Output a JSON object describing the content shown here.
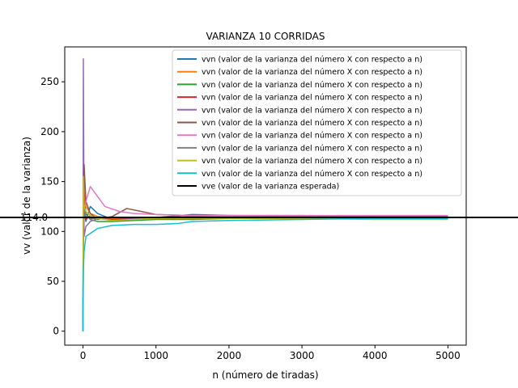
{
  "chart_data": {
    "type": "line",
    "title": "VARIANZA 10 CORRIDAS",
    "xlabel": "n (número de tiradas)",
    "ylabel": "vv (valor de la varianza)",
    "xlim": [
      -250,
      5250
    ],
    "ylim": [
      -14,
      285
    ],
    "x_ticks": [
      0,
      1000,
      2000,
      3000,
      4000,
      5000
    ],
    "y_ticks": [
      0,
      50,
      100,
      150,
      200,
      250
    ],
    "extra_y_tick": {
      "value": 114,
      "label": "114.0"
    },
    "grid": false,
    "legend_position": "top-right",
    "expected_line": {
      "name": "vve (valor de la varianza esperada)",
      "y": 114,
      "color": "#000000"
    },
    "series": [
      {
        "name": "vvn (valor de la varianza del número X con respecto a n)",
        "color": "#1f77b4",
        "points": [
          [
            0,
            0
          ],
          [
            5,
            160
          ],
          [
            15,
            120
          ],
          [
            40,
            110
          ],
          [
            100,
            125
          ],
          [
            200,
            118
          ],
          [
            400,
            112
          ],
          [
            700,
            112
          ],
          [
            1000,
            114
          ],
          [
            1500,
            117
          ],
          [
            2000,
            116
          ],
          [
            3000,
            116
          ],
          [
            4000,
            115
          ],
          [
            5000,
            115
          ]
        ]
      },
      {
        "name": "vvn (valor de la varianza del número X con respecto a n)",
        "color": "#ff7f0e",
        "points": [
          [
            0,
            0
          ],
          [
            5,
            130
          ],
          [
            15,
            145
          ],
          [
            40,
            125
          ],
          [
            100,
            118
          ],
          [
            200,
            115
          ],
          [
            400,
            113
          ],
          [
            700,
            112
          ],
          [
            1000,
            113
          ],
          [
            1500,
            113
          ],
          [
            2000,
            114
          ],
          [
            3000,
            114
          ],
          [
            4000,
            114
          ],
          [
            5000,
            114
          ]
        ]
      },
      {
        "name": "vvn (valor de la varianza del número X con respecto a n)",
        "color": "#2ca02c",
        "points": [
          [
            0,
            0
          ],
          [
            5,
            100
          ],
          [
            15,
            135
          ],
          [
            40,
            118
          ],
          [
            100,
            112
          ],
          [
            200,
            110
          ],
          [
            400,
            110
          ],
          [
            700,
            111
          ],
          [
            1000,
            112
          ],
          [
            1500,
            112
          ],
          [
            2000,
            113
          ],
          [
            3000,
            113
          ],
          [
            4000,
            113
          ],
          [
            5000,
            113
          ]
        ]
      },
      {
        "name": "vvn (valor de la varianza del número X con respecto a n)",
        "color": "#d62728",
        "points": [
          [
            0,
            0
          ],
          [
            5,
            110
          ],
          [
            15,
            140
          ],
          [
            40,
            112
          ],
          [
            100,
            116
          ],
          [
            200,
            113
          ],
          [
            400,
            112
          ],
          [
            700,
            113
          ],
          [
            1000,
            114
          ],
          [
            1500,
            115
          ],
          [
            2000,
            115
          ],
          [
            3000,
            115
          ],
          [
            4000,
            115
          ],
          [
            5000,
            115
          ]
        ]
      },
      {
        "name": "vvn (valor de la varianza del número X con respecto a n)",
        "color": "#9467bd",
        "points": [
          [
            0,
            0
          ],
          [
            5,
            273
          ],
          [
            15,
            95
          ],
          [
            40,
            105
          ],
          [
            100,
            110
          ],
          [
            200,
            113
          ],
          [
            400,
            114
          ],
          [
            700,
            113
          ],
          [
            1000,
            114
          ],
          [
            1500,
            114
          ],
          [
            2000,
            115
          ],
          [
            3000,
            115
          ],
          [
            4000,
            115
          ],
          [
            5000,
            115
          ]
        ]
      },
      {
        "name": "vvn (valor de la varianza del número X con respecto a n)",
        "color": "#8c564b",
        "points": [
          [
            0,
            0
          ],
          [
            5,
            120
          ],
          [
            15,
            167
          ],
          [
            40,
            130
          ],
          [
            100,
            118
          ],
          [
            200,
            112
          ],
          [
            400,
            115
          ],
          [
            600,
            123
          ],
          [
            800,
            120
          ],
          [
            1000,
            117
          ],
          [
            1500,
            116
          ],
          [
            2000,
            116
          ],
          [
            3000,
            115
          ],
          [
            4000,
            115
          ],
          [
            5000,
            115
          ]
        ]
      },
      {
        "name": "vvn (valor de la varianza del número X con respecto a n)",
        "color": "#e377c2",
        "points": [
          [
            0,
            0
          ],
          [
            5,
            150
          ],
          [
            15,
            120
          ],
          [
            40,
            130
          ],
          [
            100,
            145
          ],
          [
            200,
            135
          ],
          [
            300,
            125
          ],
          [
            500,
            120
          ],
          [
            700,
            118
          ],
          [
            1000,
            117
          ],
          [
            1500,
            116
          ],
          [
            2000,
            116
          ],
          [
            3000,
            116
          ],
          [
            4000,
            116
          ],
          [
            5000,
            116
          ]
        ]
      },
      {
        "name": "vvn (valor de la varianza del número X con respecto a n)",
        "color": "#7f7f7f",
        "points": [
          [
            0,
            0
          ],
          [
            5,
            90
          ],
          [
            15,
            125
          ],
          [
            40,
            115
          ],
          [
            100,
            113
          ],
          [
            200,
            113
          ],
          [
            400,
            114
          ],
          [
            700,
            114
          ],
          [
            1000,
            114
          ],
          [
            1500,
            114
          ],
          [
            2000,
            114
          ],
          [
            3000,
            114
          ],
          [
            4000,
            114
          ],
          [
            5000,
            114
          ]
        ]
      },
      {
        "name": "vvn (valor de la varianza del número X con respecto a n)",
        "color": "#bcbd22",
        "points": [
          [
            0,
            0
          ],
          [
            5,
            155
          ],
          [
            15,
            125
          ],
          [
            40,
            120
          ],
          [
            100,
            116
          ],
          [
            200,
            113
          ],
          [
            400,
            111
          ],
          [
            700,
            112
          ],
          [
            1000,
            113
          ],
          [
            1500,
            113
          ],
          [
            2000,
            113
          ],
          [
            3000,
            113
          ],
          [
            4000,
            112
          ],
          [
            5000,
            112
          ]
        ]
      },
      {
        "name": "vvn (valor de la varianza del número X con respecto a n)",
        "color": "#17becf",
        "points": [
          [
            0,
            0
          ],
          [
            5,
            60
          ],
          [
            15,
            80
          ],
          [
            40,
            95
          ],
          [
            100,
            98
          ],
          [
            200,
            103
          ],
          [
            400,
            106
          ],
          [
            700,
            107
          ],
          [
            1000,
            107
          ],
          [
            1300,
            108
          ],
          [
            1500,
            110
          ],
          [
            2000,
            111
          ],
          [
            3000,
            112
          ],
          [
            4000,
            113
          ],
          [
            5000,
            113
          ]
        ]
      }
    ]
  }
}
